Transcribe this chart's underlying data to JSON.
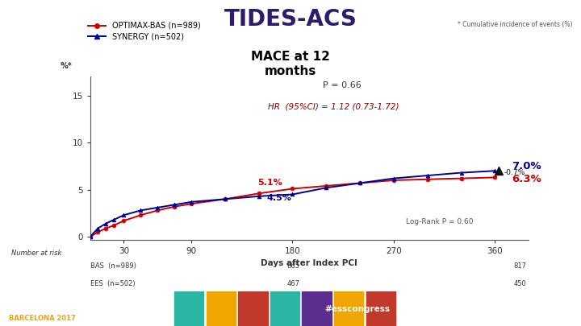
{
  "title": "TIDES-ACS",
  "subtitle": "MACE at 12\nmonths",
  "y_axis_label": "* Cumulative incidence of events (%)",
  "x_label": "Days after Index PCI",
  "y_percent_label": "%*",
  "legend": [
    "OPTIMAX-BAS (n=989)",
    "SYNERGY (n=502)"
  ],
  "legend_colors": [
    "#cc0000",
    "#000099"
  ],
  "p_value_text": "P = 0.66",
  "hr_text": "HR  (95%CI) = 1.12 (0.73-1.72)",
  "logrank_text": "Log-Rank P = 0.60",
  "red_label_180": "5.1%",
  "blue_label_180": "4.5%",
  "red_label_360": "6.3%",
  "blue_label_360": "7.0%",
  "delta_label": "▲-0.7%",
  "xticks": [
    30,
    90,
    180,
    270,
    360
  ],
  "yticks": [
    0,
    5,
    10,
    15
  ],
  "ylim": [
    -0.3,
    17
  ],
  "xlim": [
    0,
    390
  ],
  "number_at_risk_label": "Number at risk",
  "red_x": [
    0,
    7,
    14,
    21,
    30,
    45,
    60,
    75,
    90,
    120,
    150,
    180,
    210,
    240,
    270,
    300,
    330,
    360
  ],
  "red_y": [
    0,
    0.5,
    0.9,
    1.2,
    1.7,
    2.3,
    2.8,
    3.2,
    3.5,
    4.0,
    4.6,
    5.1,
    5.4,
    5.7,
    6.0,
    6.1,
    6.2,
    6.3
  ],
  "blue_x": [
    0,
    7,
    14,
    21,
    30,
    45,
    60,
    75,
    90,
    120,
    150,
    180,
    210,
    240,
    270,
    300,
    330,
    360
  ],
  "blue_y": [
    0,
    0.9,
    1.4,
    1.8,
    2.3,
    2.8,
    3.1,
    3.4,
    3.7,
    4.0,
    4.3,
    4.5,
    5.2,
    5.7,
    6.2,
    6.5,
    6.8,
    7.0
  ],
  "bg_color": "#ffffff",
  "title_color": "#2d1b6e",
  "footer_color": "#3d1a8e",
  "footer_gold": "#f0a500"
}
